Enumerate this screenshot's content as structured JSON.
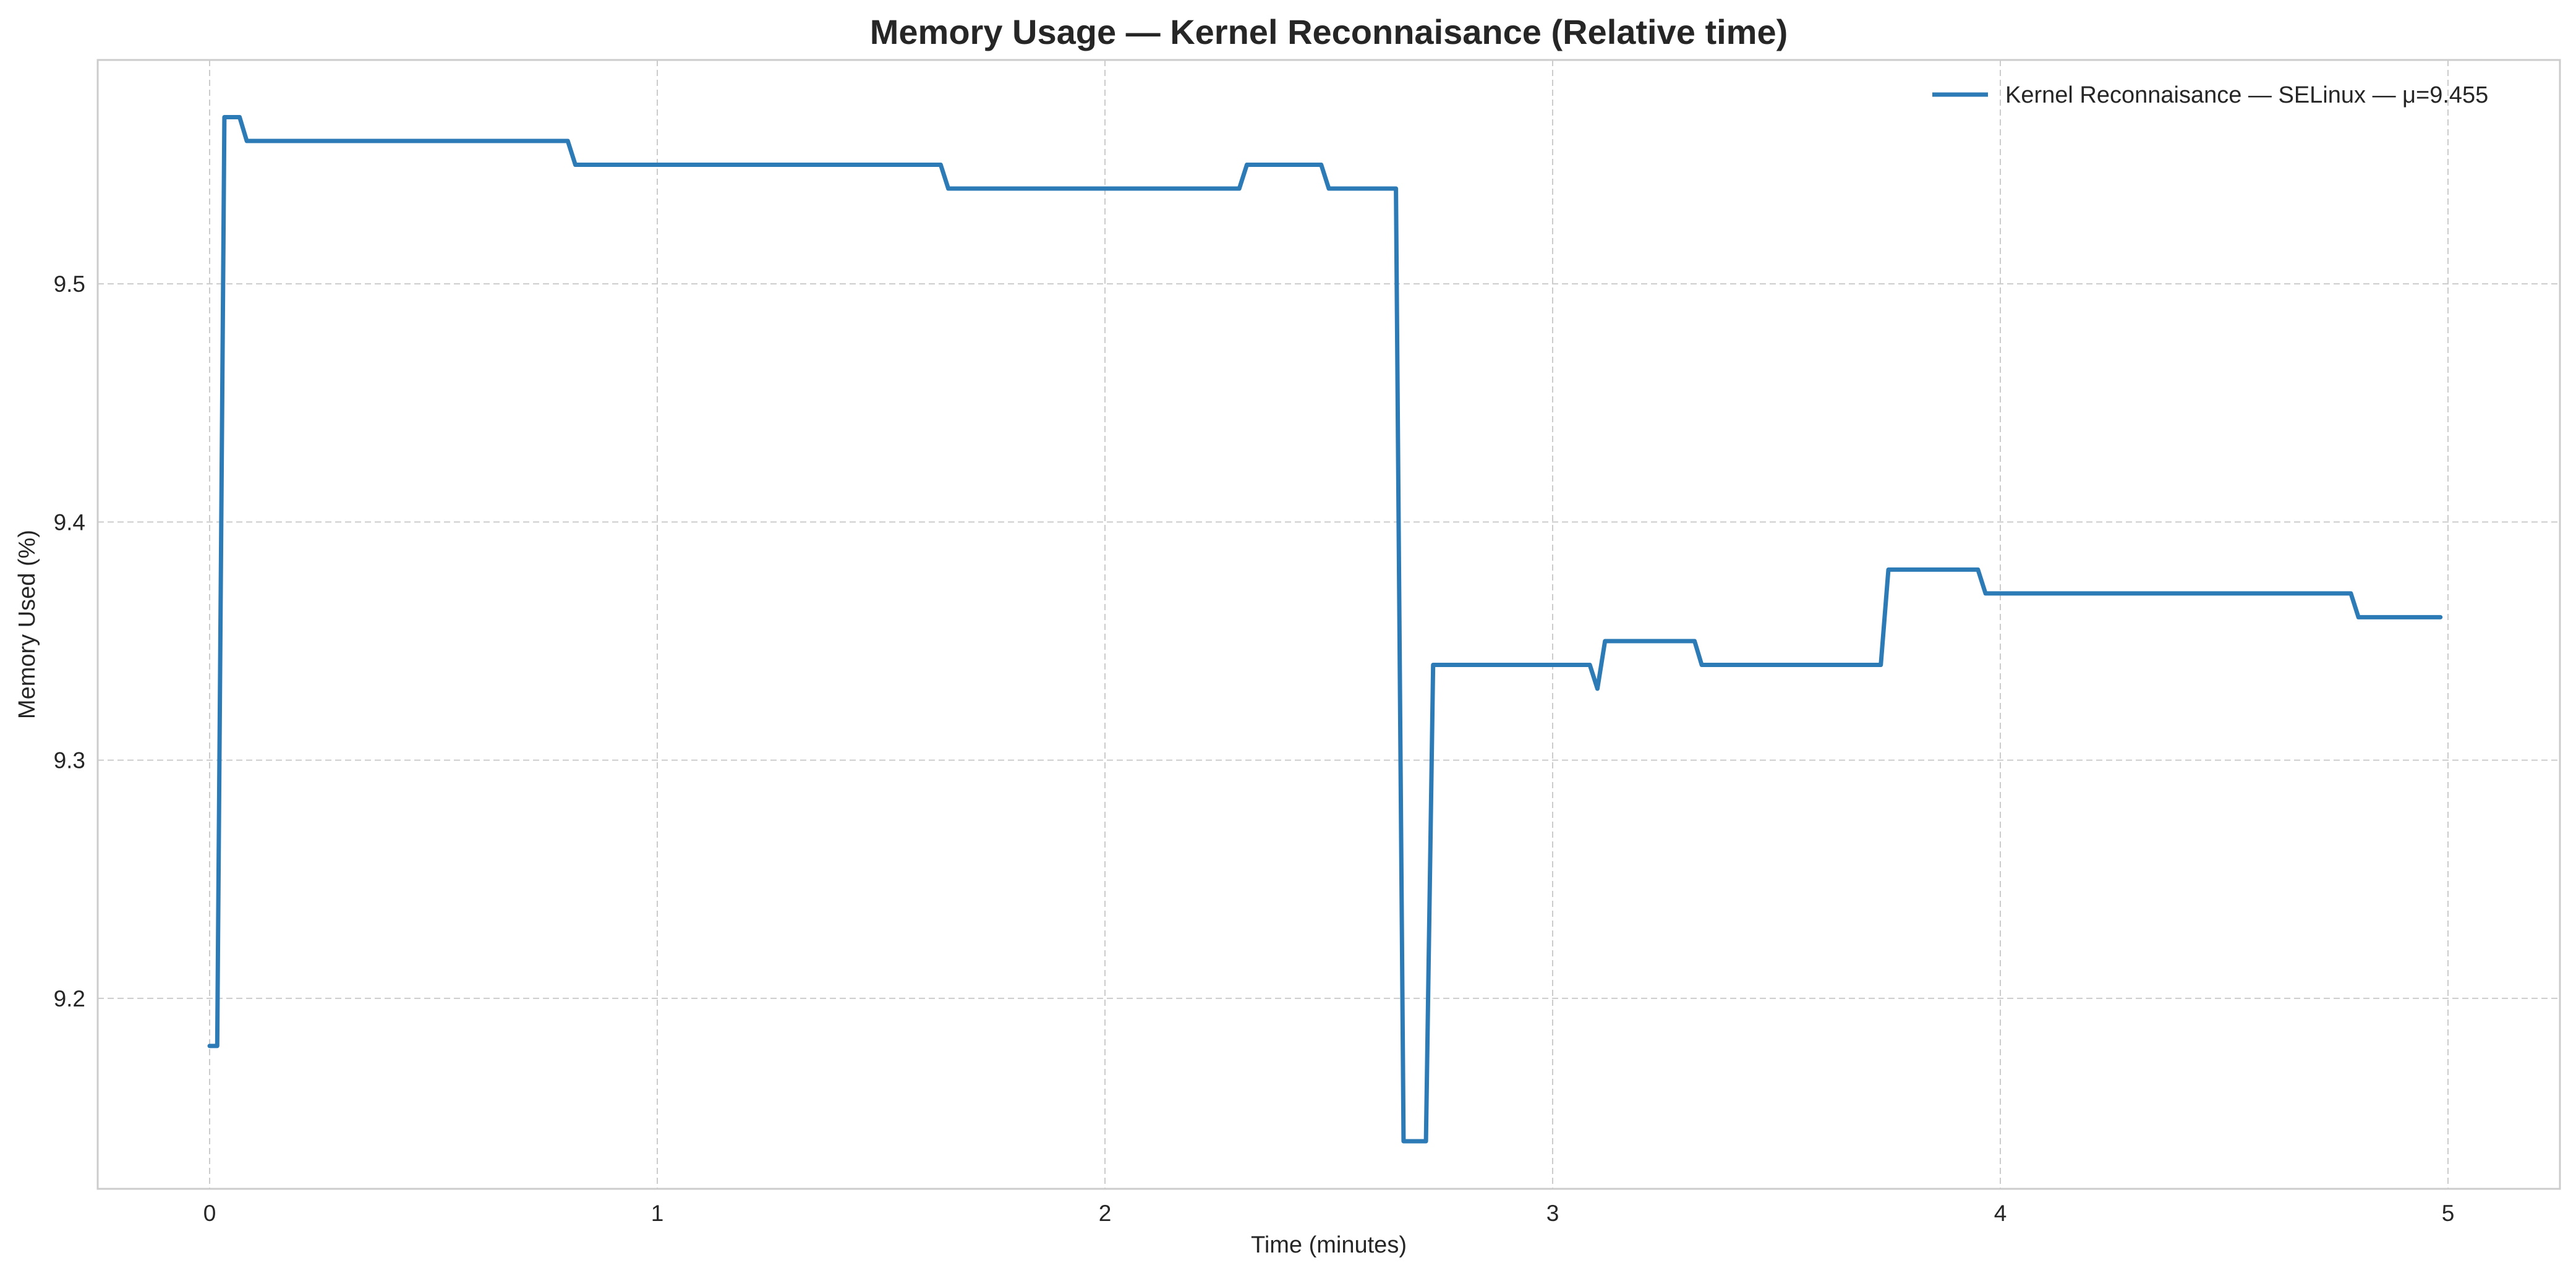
{
  "chart_data": {
    "type": "line",
    "title": "Memory Usage — Kernel Reconnaisance (Relative time)",
    "xlabel": "Time (minutes)",
    "ylabel": "Memory Used (%)",
    "xlim": [
      -0.25,
      5.25
    ],
    "ylim": [
      9.12,
      9.594
    ],
    "xticks": [
      0,
      1,
      2,
      3,
      4,
      5
    ],
    "xtick_labels": [
      "0",
      "1",
      "2",
      "3",
      "4",
      "5"
    ],
    "yticks": [
      9.2,
      9.3,
      9.4,
      9.5
    ],
    "ytick_labels": [
      "9.2",
      "9.3",
      "9.4",
      "9.5"
    ],
    "grid": true,
    "legend": {
      "position": "top-right"
    },
    "series": [
      {
        "name": "Kernel Reconnaisance — SELinux — μ=9.455",
        "color": "#2c7bb6",
        "x": [
          0.0,
          0.017,
          0.033,
          0.067,
          0.083,
          0.8,
          0.817,
          1.633,
          1.65,
          2.3,
          2.317,
          2.483,
          2.5,
          2.65,
          2.667,
          2.717,
          2.733,
          3.083,
          3.1,
          3.117,
          3.317,
          3.333,
          3.733,
          3.75,
          3.95,
          3.967,
          4.783,
          4.8,
          4.983
        ],
        "y": [
          9.18,
          9.18,
          9.57,
          9.57,
          9.56,
          9.56,
          9.55,
          9.55,
          9.54,
          9.54,
          9.55,
          9.55,
          9.54,
          9.54,
          9.14,
          9.14,
          9.34,
          9.34,
          9.33,
          9.35,
          9.35,
          9.34,
          9.34,
          9.38,
          9.38,
          9.37,
          9.37,
          9.36,
          9.36
        ]
      }
    ]
  }
}
